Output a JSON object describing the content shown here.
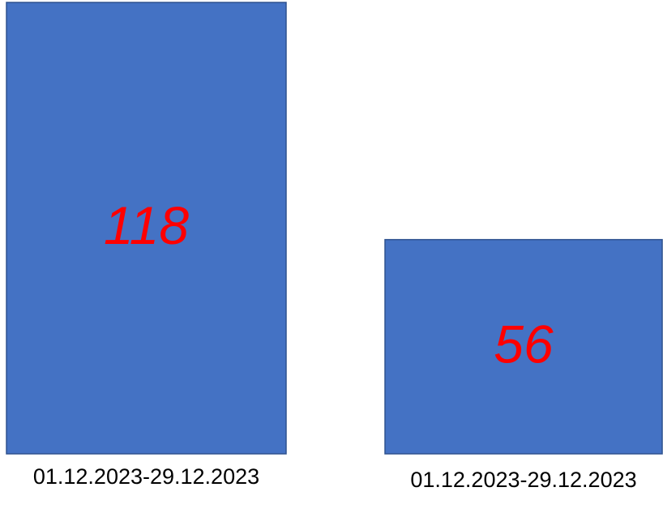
{
  "colors": {
    "bar_fill": "#4472C4",
    "bar_outline": "#2F528F",
    "value_label": "#FF0000",
    "category_label": "#000000",
    "background": "#FFFFFF"
  },
  "chart_data": {
    "type": "bar",
    "categories": [
      "01.12.2023-29.12.2023",
      "01.12.2023-29.12.2023"
    ],
    "values": [
      118,
      56
    ],
    "data_labels": [
      "118",
      "56"
    ],
    "title": "",
    "xlabel": "",
    "ylabel": "",
    "grid": false,
    "legend": "none"
  }
}
